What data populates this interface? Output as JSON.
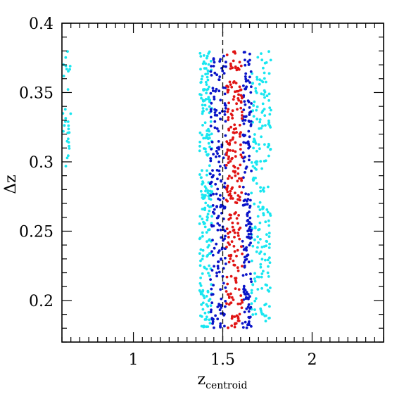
{
  "chart_data": {
    "type": "scatter",
    "title": "",
    "xlabel": "z",
    "xlabel_subscript": "centroid",
    "ylabel": "Δz",
    "xlim": [
      0.6,
      2.4
    ],
    "ylim": [
      0.17,
      0.4
    ],
    "x_ticks": [
      "1",
      "1.5",
      "2"
    ],
    "x_tick_values": [
      1,
      1.5,
      2
    ],
    "y_ticks": [
      "0.2",
      "0.25",
      "0.3",
      "0.35",
      "0.4"
    ],
    "y_tick_values": [
      0.2,
      0.25,
      0.3,
      0.35,
      0.4
    ],
    "x_minor_step": 0.05,
    "y_minor_step": 0.01,
    "reference_line": {
      "x": 1.5,
      "style": "dashed"
    },
    "grid": false,
    "legend": "none",
    "colors": {
      "cyan": "#19e6f0",
      "blue": "#0a14c8",
      "red": "#e01414"
    },
    "series": [
      {
        "color": "cyan",
        "x_range": [
          0.6,
          0.65
        ],
        "y_range": [
          0.295,
          0.38
        ],
        "count": 30
      },
      {
        "color": "cyan",
        "x_range": [
          1.37,
          1.44
        ],
        "y_range": [
          0.18,
          0.38
        ],
        "count": 220
      },
      {
        "color": "cyan",
        "x_range": [
          1.66,
          1.77
        ],
        "y_range": [
          0.185,
          0.38
        ],
        "count": 200
      },
      {
        "color": "blue",
        "x_range": [
          1.43,
          1.52
        ],
        "y_range": [
          0.18,
          0.38
        ],
        "count": 200
      },
      {
        "color": "blue",
        "x_range": [
          1.61,
          1.66
        ],
        "y_range": [
          0.18,
          0.38
        ],
        "count": 170
      },
      {
        "color": "red",
        "x_range": [
          1.52,
          1.61
        ],
        "y_range": [
          0.18,
          0.38
        ],
        "count": 230
      }
    ]
  }
}
